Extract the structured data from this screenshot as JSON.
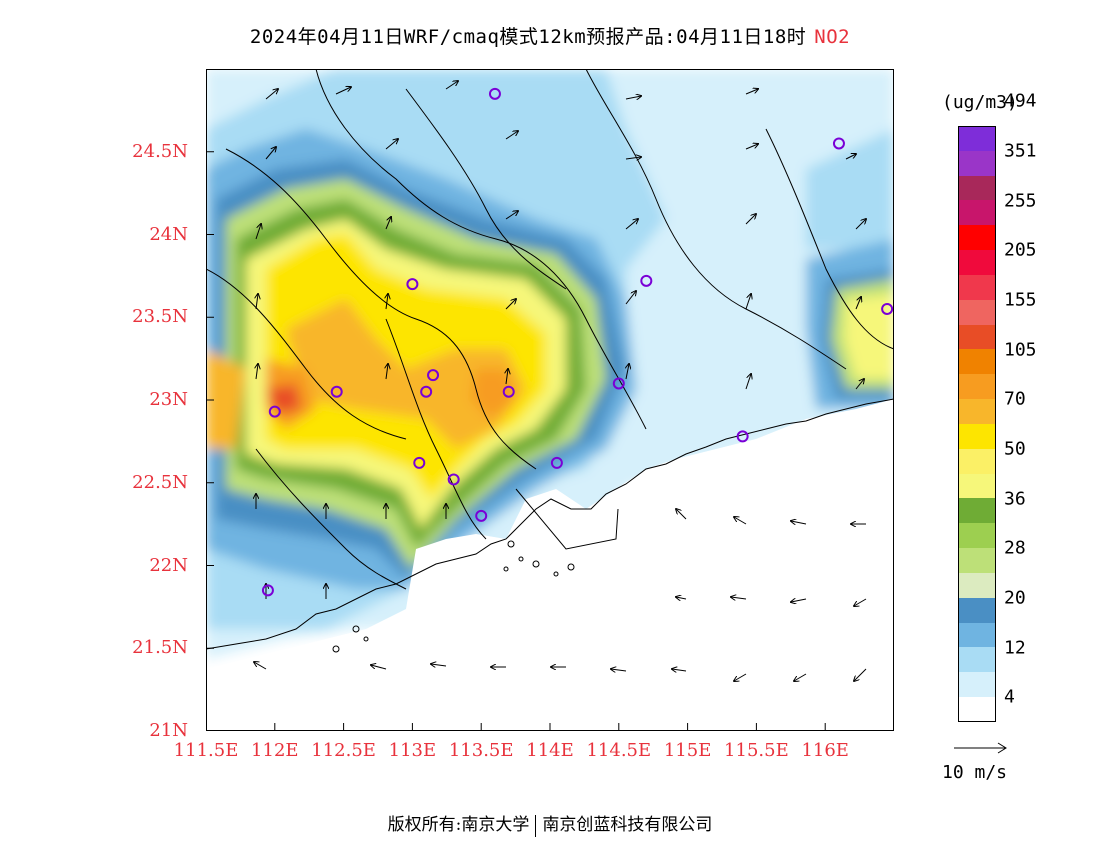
{
  "title": {
    "text": "2024年04月11日WRF/cmaq模式12km预报产品:04月11日18时",
    "pollutant": "NO2"
  },
  "map": {
    "lon_range": [
      111.5,
      116.5
    ],
    "lat_range": [
      21,
      25
    ],
    "lat_ticks": [
      "24.5N",
      "24N",
      "23.5N",
      "23N",
      "22.5N",
      "22N",
      "21.5N",
      "21N"
    ],
    "lon_ticks": [
      "111.5E",
      "112E",
      "112.5E",
      "113E",
      "113.5E",
      "114E",
      "114.5E",
      "115E",
      "115.5E",
      "116E"
    ],
    "stations": [
      [
        113.6,
        24.85
      ],
      [
        116.1,
        24.55
      ],
      [
        113.0,
        23.7
      ],
      [
        114.7,
        23.72
      ],
      [
        116.45,
        23.55
      ],
      [
        113.15,
        23.15
      ],
      [
        113.1,
        23.05
      ],
      [
        112.45,
        23.05
      ],
      [
        113.7,
        23.05
      ],
      [
        114.5,
        23.1
      ],
      [
        112.0,
        22.93
      ],
      [
        115.4,
        22.78
      ],
      [
        113.05,
        22.62
      ],
      [
        114.05,
        22.62
      ],
      [
        113.3,
        22.52
      ],
      [
        113.5,
        22.3
      ],
      [
        111.95,
        21.85
      ]
    ]
  },
  "colorbar": {
    "unit": "(ug/m3)",
    "colors": [
      "#ffffff",
      "#d6f0fb",
      "#a9dcf4",
      "#6fb4e1",
      "#4a8fc4",
      "#dcebc0",
      "#bde078",
      "#9dcf50",
      "#6fac35",
      "#f6f77a",
      "#fbf066",
      "#fde500",
      "#f8b62b",
      "#f79c20",
      "#f08200",
      "#e84d26",
      "#ef6560",
      "#f0384c",
      "#f00a3c",
      "#ff0000",
      "#c8156b",
      "#a8285a",
      "#9a35c8",
      "#7e2dd9"
    ],
    "labels": [
      "4",
      "12",
      "20",
      "28",
      "36",
      "50",
      "70",
      "105",
      "155",
      "205",
      "255",
      "351",
      "494"
    ]
  },
  "wind_reference": {
    "label": "10 m/s"
  },
  "footer": {
    "copyright": "版权所有:南京大学",
    "company": "南京创蓝科技有限公司"
  }
}
